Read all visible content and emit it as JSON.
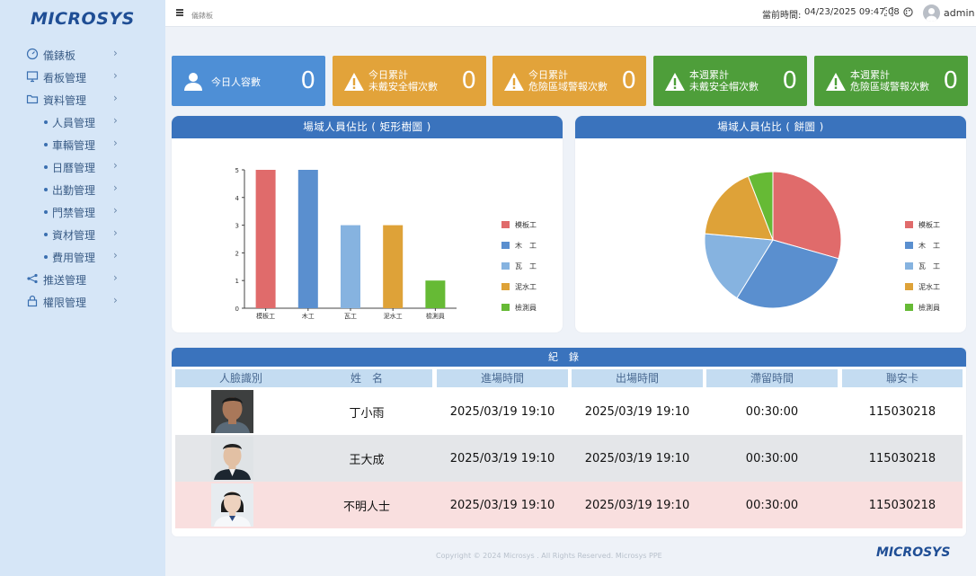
{
  "brand": "MICROSYS",
  "topbar": {
    "breadcrumb": "儀錶板",
    "time_label": "當前時間:",
    "time_value": "04/23/2025 09:47:08",
    "user": "admin"
  },
  "sidebar": {
    "items": [
      {
        "label": "儀錶板",
        "icon": "gauge-icon",
        "sub": false
      },
      {
        "label": "看板管理",
        "icon": "monitor-icon",
        "sub": false
      },
      {
        "label": "資料管理",
        "icon": "folder-icon",
        "sub": false
      },
      {
        "label": "人員管理",
        "icon": "",
        "sub": true
      },
      {
        "label": "車輛管理",
        "icon": "",
        "sub": true
      },
      {
        "label": "日曆管理",
        "icon": "",
        "sub": true
      },
      {
        "label": "出勤管理",
        "icon": "",
        "sub": true
      },
      {
        "label": "門禁管理",
        "icon": "",
        "sub": true
      },
      {
        "label": "資材管理",
        "icon": "",
        "sub": true
      },
      {
        "label": "費用管理",
        "icon": "",
        "sub": true
      },
      {
        "label": "推送管理",
        "icon": "share-icon",
        "sub": false
      },
      {
        "label": "權限管理",
        "icon": "lock-icon",
        "sub": false
      }
    ]
  },
  "kpis": [
    {
      "label1": "今日人容數",
      "label2": "",
      "value": "0",
      "color": "#4e8fd6",
      "icon": "user-icon"
    },
    {
      "label1": "今日累計",
      "label2": "未戴安全帽次數",
      "value": "0",
      "color": "#e2a33a",
      "icon": "warning-icon"
    },
    {
      "label1": "今日累計",
      "label2": "危險區域警報次數",
      "value": "0",
      "color": "#e2a33a",
      "icon": "warning-icon"
    },
    {
      "label1": "本週累計",
      "label2": "未戴安全帽次數",
      "value": "0",
      "color": "#4e9e3a",
      "icon": "warning-icon"
    },
    {
      "label1": "本週累計",
      "label2": "危險區域警報次數",
      "value": "0",
      "color": "#4e9e3a",
      "icon": "warning-icon"
    }
  ],
  "bar_panel": {
    "title": "場域人員佔比 ( 矩形樹圖 )"
  },
  "pie_panel": {
    "title": "場域人員佔比 ( 餅圖 )"
  },
  "chart_data": [
    {
      "type": "bar",
      "title": "場域人員佔比 ( 矩形樹圖 )",
      "categories": [
        "模板工",
        "木工",
        "瓦工",
        "泥水工",
        "檢測員"
      ],
      "values": [
        5,
        5,
        3,
        3,
        1
      ],
      "colors": [
        "#e06b6b",
        "#5a8fcf",
        "#86b3e0",
        "#dea238",
        "#66ba35"
      ],
      "ylim": [
        0,
        5
      ],
      "yticks": [
        "0",
        "1",
        "2",
        "3",
        "4",
        "5"
      ],
      "legend": [
        "模板工",
        "木　工",
        "瓦　工",
        "泥水工",
        "檢測員"
      ],
      "legend_position": "right"
    },
    {
      "type": "pie",
      "title": "場域人員佔比 ( 餅圖 )",
      "categories": [
        "模板工",
        "木工",
        "瓦工",
        "泥水工",
        "檢測員"
      ],
      "values": [
        5,
        5,
        3,
        3,
        1
      ],
      "colors": [
        "#e06b6b",
        "#5a8fcf",
        "#86b3e0",
        "#dea238",
        "#66ba35"
      ],
      "legend": [
        "模板工",
        "木　工",
        "瓦　工",
        "泥水工",
        "檢測員"
      ],
      "legend_position": "right"
    }
  ],
  "records": {
    "title": "紀錄",
    "columns": [
      "人臉識別",
      "姓　名",
      "進場時間",
      "出場時間",
      "滯留時間",
      "聯安卡"
    ],
    "rows": [
      {
        "name": "丁小雨",
        "in": "2025/03/19  19:10",
        "out": "2025/03/19  19:10",
        "stay": "00:30:00",
        "card": "115030218",
        "bg": "#ffffff"
      },
      {
        "name": "王大成",
        "in": "2025/03/19  19:10",
        "out": "2025/03/19  19:10",
        "stay": "00:30:00",
        "card": "115030218",
        "bg": "#e4e6e9"
      },
      {
        "name": "不明人士",
        "in": "2025/03/19  19:10",
        "out": "2025/03/19  19:10",
        "stay": "00:30:00",
        "card": "115030218",
        "bg": "#f9dfdf"
      }
    ]
  },
  "footer": {
    "copyright": "Copyright © 2024 Microsys . All Rights Reserved. Microsys PPE",
    "logo": "MICROSYS"
  }
}
